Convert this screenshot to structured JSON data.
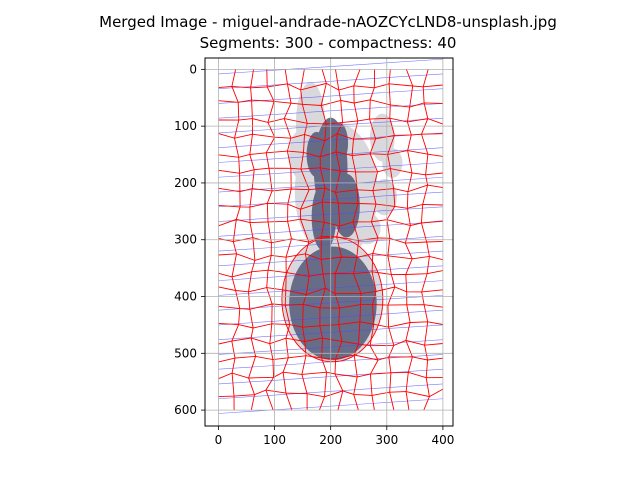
{
  "chart_data": {
    "type": "image",
    "title": "Merged Image - miguel-andrade-nAOZCYcLND8-unsplash.jpg",
    "subtitle": "Segments: 300 - compactness: 40",
    "image_width": 400,
    "image_height": 600,
    "xlim": [
      -24,
      418
    ],
    "ylim": [
      628,
      -20
    ],
    "x_ticks": [
      0,
      100,
      200,
      300,
      400
    ],
    "x_tick_labels": [
      "0",
      "100",
      "200",
      "300",
      "400"
    ],
    "y_ticks": [
      0,
      100,
      200,
      300,
      400,
      500,
      600
    ],
    "y_tick_labels": [
      "0",
      "100",
      "200",
      "300",
      "400",
      "500",
      "600"
    ],
    "grid": true,
    "segments": 300,
    "compactness": 40,
    "colors": {
      "boundary": "#ff0000",
      "grid": "#b0b0b0",
      "flow_lines": "#4b4bff",
      "object_dark": "#5a607c",
      "object_light": "#d7d7dc"
    }
  }
}
